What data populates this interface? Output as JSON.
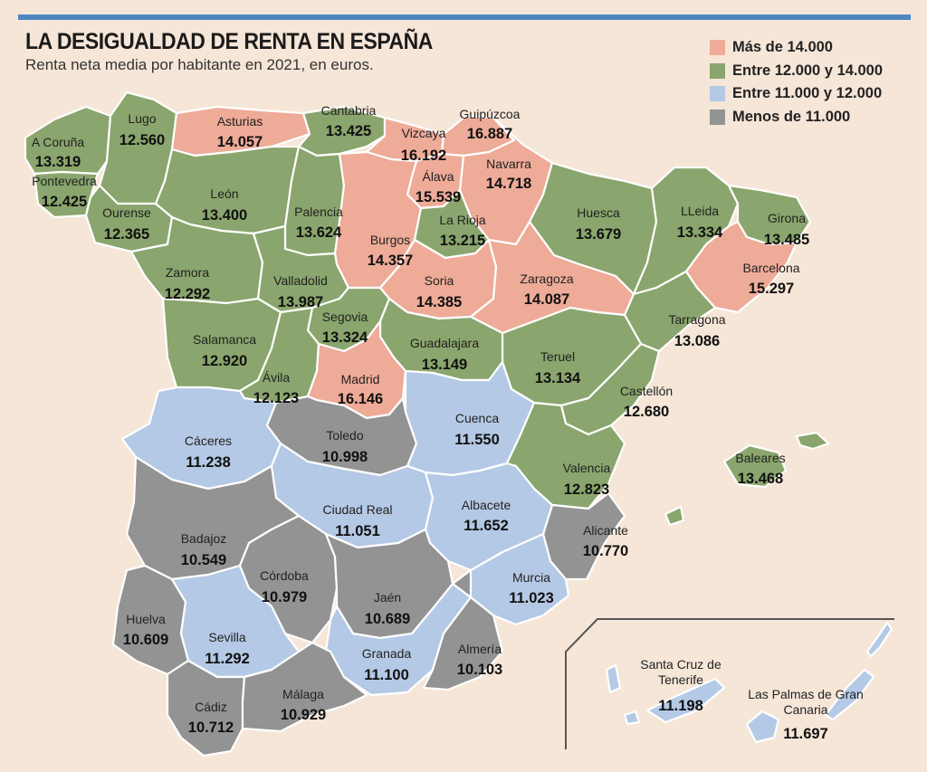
{
  "title": "LA DESIGUALDAD DE RENTA EN ESPAÑA",
  "subtitle": "Renta neta media por habitante en 2021, en euros.",
  "colors": {
    "alta": "#eeab98",
    "media_alta": "#8aa56d",
    "media_baja": "#b4c9e5",
    "baja": "#939393",
    "accent": "#4e87c1",
    "background": "#f6e6d8"
  },
  "legend": [
    {
      "label": "Más de 14.000",
      "color_key": "alta"
    },
    {
      "label": "Entre 12.000 y 14.000",
      "color_key": "media_alta"
    },
    {
      "label": "Entre 11.000 y 12.000",
      "color_key": "media_baja"
    },
    {
      "label": "Menos de 11.000",
      "color_key": "baja"
    }
  ],
  "provinces": [
    {
      "name": "A Coruña",
      "value": "13.319",
      "category": "media_alta"
    },
    {
      "name": "Lugo",
      "value": "12.560",
      "category": "media_alta"
    },
    {
      "name": "Asturias",
      "value": "14.057",
      "category": "alta"
    },
    {
      "name": "Cantabria",
      "value": "13.425",
      "category": "media_alta"
    },
    {
      "name": "Vizcaya",
      "value": "16.192",
      "category": "alta"
    },
    {
      "name": "Guipúzcoa",
      "value": "16.887",
      "category": "alta"
    },
    {
      "name": "Navarra",
      "value": "14.718",
      "category": "alta"
    },
    {
      "name": "Álava",
      "value": "15.539",
      "category": "alta"
    },
    {
      "name": "Pontevedra",
      "value": "12.425",
      "category": "media_alta"
    },
    {
      "name": "León",
      "value": "13.400",
      "category": "media_alta"
    },
    {
      "name": "Ourense",
      "value": "12.365",
      "category": "media_alta"
    },
    {
      "name": "Palencia",
      "value": "13.624",
      "category": "media_alta"
    },
    {
      "name": "Burgos",
      "value": "14.357",
      "category": "alta"
    },
    {
      "name": "La Rioja",
      "value": "13.215",
      "category": "media_alta"
    },
    {
      "name": "Huesca",
      "value": "13.679",
      "category": "media_alta"
    },
    {
      "name": "LLeida",
      "value": "13.334",
      "category": "media_alta"
    },
    {
      "name": "Girona",
      "value": "13.485",
      "category": "media_alta"
    },
    {
      "name": "Barcelona",
      "value": "15.297",
      "category": "alta"
    },
    {
      "name": "Zamora",
      "value": "12.292",
      "category": "media_alta"
    },
    {
      "name": "Valladolid",
      "value": "13.987",
      "category": "media_alta"
    },
    {
      "name": "Soria",
      "value": "14.385",
      "category": "alta"
    },
    {
      "name": "Zaragoza",
      "value": "14.087",
      "category": "alta"
    },
    {
      "name": "Tarragona",
      "value": "13.086",
      "category": "media_alta"
    },
    {
      "name": "Salamanca",
      "value": "12.920",
      "category": "media_alta"
    },
    {
      "name": "Segovia",
      "value": "13.324",
      "category": "media_alta"
    },
    {
      "name": "Guadalajara",
      "value": "13.149",
      "category": "media_alta"
    },
    {
      "name": "Teruel",
      "value": "13.134",
      "category": "media_alta"
    },
    {
      "name": "Ávila",
      "value": "12.123",
      "category": "media_alta"
    },
    {
      "name": "Madrid",
      "value": "16.146",
      "category": "alta"
    },
    {
      "name": "Castellón",
      "value": "12.680",
      "category": "media_alta"
    },
    {
      "name": "Cáceres",
      "value": "11.238",
      "category": "media_baja"
    },
    {
      "name": "Toledo",
      "value": "10.998",
      "category": "baja"
    },
    {
      "name": "Cuenca",
      "value": "11.550",
      "category": "media_baja"
    },
    {
      "name": "Baleares",
      "value": "13.468",
      "category": "media_alta"
    },
    {
      "name": "Valencia",
      "value": "12.823",
      "category": "media_alta"
    },
    {
      "name": "Ciudad Real",
      "value": "11.051",
      "category": "media_baja"
    },
    {
      "name": "Albacete",
      "value": "11.652",
      "category": "media_baja"
    },
    {
      "name": "Alicante",
      "value": "10.770",
      "category": "baja"
    },
    {
      "name": "Badajoz",
      "value": "10.549",
      "category": "baja"
    },
    {
      "name": "Córdoba",
      "value": "10.979",
      "category": "baja"
    },
    {
      "name": "Jaén",
      "value": "10.689",
      "category": "baja"
    },
    {
      "name": "Murcia",
      "value": "11.023",
      "category": "media_baja"
    },
    {
      "name": "Huelva",
      "value": "10.609",
      "category": "baja"
    },
    {
      "name": "Sevilla",
      "value": "11.292",
      "category": "media_baja"
    },
    {
      "name": "Granada",
      "value": "11.100",
      "category": "media_baja"
    },
    {
      "name": "Almería",
      "value": "10.103",
      "category": "baja"
    },
    {
      "name": "Cádiz",
      "value": "10.712",
      "category": "baja"
    },
    {
      "name": "Málaga",
      "value": "10.929",
      "category": "baja"
    },
    {
      "name": "Santa Cruz de Tenerife",
      "value": "11.198",
      "category": "media_baja"
    },
    {
      "name": "Las Palmas de Gran Canaria",
      "value": "11.697",
      "category": "media_baja"
    }
  ]
}
